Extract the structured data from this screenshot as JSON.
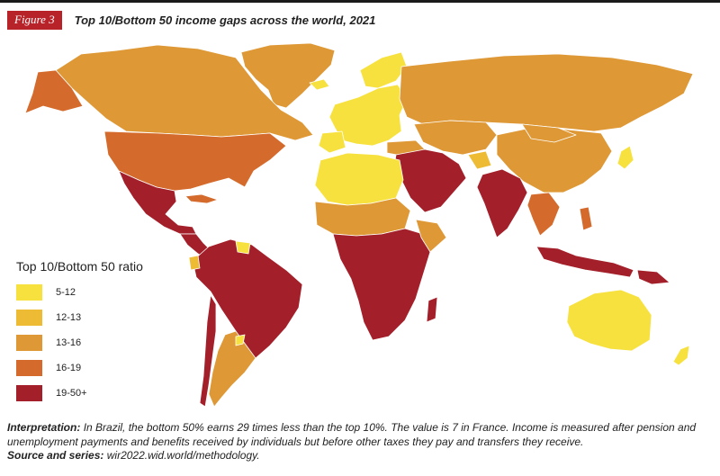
{
  "figure": {
    "badge": "Figure 3",
    "title": "Top 10/Bottom 50 income gaps across the world, 2021"
  },
  "legend": {
    "title": "Top 10/Bottom 50 ratio",
    "items": [
      {
        "label": "5-12",
        "color": "#f7e13e"
      },
      {
        "label": "12-13",
        "color": "#edbb34"
      },
      {
        "label": "13-16",
        "color": "#de9836"
      },
      {
        "label": "16-19",
        "color": "#d46a2b"
      },
      {
        "label": "19-50+",
        "color": "#a31f2a"
      }
    ]
  },
  "footer": {
    "interpretation_label": "Interpretation:",
    "interpretation_text": "In Brazil, the bottom 50% earns 29 times less than the top 10%. The value is 7 in France. Income is measured after pension and unemployment payments and benefits received by individuals but before other taxes they pay and transfers they receive.",
    "source_label": "Source and series:",
    "source_text": "wir2022.wid.world/methodology."
  }
}
